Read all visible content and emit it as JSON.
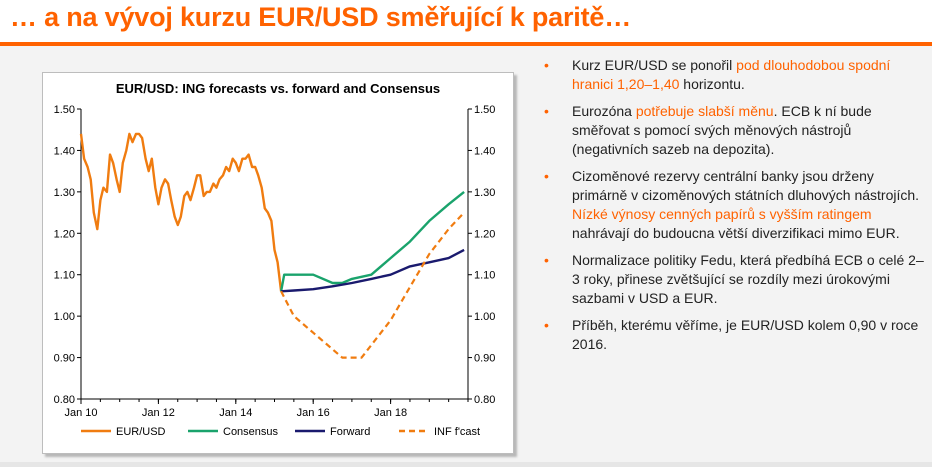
{
  "slide": {
    "title": "… a na vývoj kurzu EUR/USD směřující k paritě…",
    "accent_color": "#ff6200"
  },
  "bullets": [
    [
      {
        "t": "Kurz EUR/USD se ponořil "
      },
      {
        "t": "pod dlouhodobou spodní hranici 1,20–1,40",
        "hl": true
      },
      {
        "t": " horizontu."
      }
    ],
    [
      {
        "t": "Eurozóna "
      },
      {
        "t": "potřebuje slabší měnu",
        "hl": true
      },
      {
        "t": ". ECB k ní bude směřovat s pomocí svých měnových nástrojů (negativních sazeb na depozita)."
      }
    ],
    [
      {
        "t": "Cizoměnové rezervy centrální banky jsou drženy primárně v cizoměnových státních dluhových nástrojích. "
      },
      {
        "t": "Nízké výnosy cenných papírů s vyšším ratingem",
        "hl": true
      },
      {
        "t": " nahrávají do budoucna větší diverzifikaci mimo EUR."
      }
    ],
    [
      {
        "t": "Normalizace politiky Fedu, která předbíhá ECB o celé 2–3 roky, přinese zvětšující se rozdíly mezi úrokovými sazbami v USD a EUR."
      }
    ],
    [
      {
        "t": "Příběh, kterému věříme, je EUR/USD kolem 0,90 v roce 2016."
      }
    ]
  ],
  "chart_data": {
    "type": "line",
    "title": "EUR/USD: ING forecasts vs. forward and Consensus",
    "xlabel": "",
    "ylabel": "",
    "xlim": [
      2010.0,
      2020.0
    ],
    "ylim": [
      0.8,
      1.5
    ],
    "x_ticks": [
      2010,
      2012,
      2014,
      2016,
      2018
    ],
    "x_tick_labels": [
      "Jan 10",
      "Jan 12",
      "Jan 14",
      "Jan 16",
      "Jan 18"
    ],
    "y_ticks": [
      0.8,
      0.9,
      1.0,
      1.1,
      1.2,
      1.3,
      1.4,
      1.5
    ],
    "y_tick_labels": [
      "0.80",
      "0.90",
      "1.00",
      "1.10",
      "1.20",
      "1.30",
      "1.40",
      "1.50"
    ],
    "grid": false,
    "legend_position": "bottom",
    "series": [
      {
        "name": "EUR/USD",
        "color": "#f07c10",
        "dash": false,
        "x": [
          2010.0,
          2010.08,
          2010.17,
          2010.25,
          2010.33,
          2010.42,
          2010.5,
          2010.58,
          2010.67,
          2010.75,
          2010.83,
          2010.92,
          2011.0,
          2011.08,
          2011.17,
          2011.25,
          2011.33,
          2011.42,
          2011.5,
          2011.58,
          2011.67,
          2011.75,
          2011.83,
          2011.92,
          2012.0,
          2012.08,
          2012.17,
          2012.25,
          2012.33,
          2012.42,
          2012.5,
          2012.58,
          2012.67,
          2012.75,
          2012.83,
          2012.92,
          2013.0,
          2013.08,
          2013.17,
          2013.25,
          2013.33,
          2013.42,
          2013.5,
          2013.58,
          2013.67,
          2013.75,
          2013.83,
          2013.92,
          2014.0,
          2014.08,
          2014.17,
          2014.25,
          2014.33,
          2014.42,
          2014.5,
          2014.58,
          2014.67,
          2014.75,
          2014.83,
          2014.92,
          2015.0,
          2015.08,
          2015.17
        ],
        "y": [
          1.44,
          1.38,
          1.36,
          1.33,
          1.25,
          1.21,
          1.28,
          1.31,
          1.3,
          1.39,
          1.37,
          1.33,
          1.3,
          1.37,
          1.4,
          1.44,
          1.42,
          1.44,
          1.44,
          1.43,
          1.38,
          1.35,
          1.38,
          1.31,
          1.27,
          1.31,
          1.33,
          1.32,
          1.28,
          1.24,
          1.22,
          1.24,
          1.29,
          1.3,
          1.28,
          1.31,
          1.34,
          1.34,
          1.29,
          1.3,
          1.3,
          1.32,
          1.31,
          1.33,
          1.34,
          1.36,
          1.35,
          1.38,
          1.37,
          1.35,
          1.38,
          1.38,
          1.39,
          1.36,
          1.36,
          1.34,
          1.31,
          1.26,
          1.25,
          1.23,
          1.16,
          1.13,
          1.06
        ]
      },
      {
        "name": "Consensus",
        "color": "#1aa36c",
        "dash": false,
        "x": [
          2015.17,
          2015.25,
          2015.5,
          2016.0,
          2016.5,
          2016.75,
          2017.0,
          2017.5,
          2018.0,
          2018.5,
          2019.0,
          2019.5,
          2019.9
        ],
        "y": [
          1.06,
          1.1,
          1.1,
          1.1,
          1.08,
          1.08,
          1.09,
          1.1,
          1.14,
          1.18,
          1.23,
          1.27,
          1.3
        ]
      },
      {
        "name": "Forward",
        "color": "#1a1a6e",
        "dash": false,
        "x": [
          2015.17,
          2015.5,
          2016.0,
          2016.5,
          2017.0,
          2017.5,
          2018.0,
          2018.5,
          2019.0,
          2019.5,
          2019.9
        ],
        "y": [
          1.06,
          1.062,
          1.065,
          1.072,
          1.08,
          1.09,
          1.1,
          1.12,
          1.13,
          1.14,
          1.16
        ]
      },
      {
        "name": "INF f'cast",
        "color": "#f07c10",
        "dash": true,
        "x": [
          2015.17,
          2015.5,
          2016.0,
          2016.5,
          2016.75,
          2017.0,
          2017.25,
          2017.5,
          2018.0,
          2018.5,
          2019.0,
          2019.5,
          2019.9
        ],
        "y": [
          1.06,
          1.0,
          0.96,
          0.92,
          0.9,
          0.9,
          0.9,
          0.93,
          0.99,
          1.07,
          1.15,
          1.21,
          1.25
        ]
      }
    ]
  }
}
